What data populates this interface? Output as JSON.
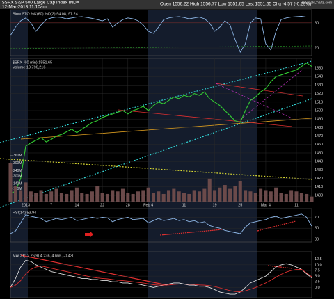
{
  "header": {
    "symbol": "$SPX S&P 500 Large Cap Index INDX",
    "date": "12-Mar-2013 11:10am",
    "quote": "Open 1556.22 High 1556.77 Low 1551.65 Last 1551.65 Chg -4.57 (-0.29%)",
    "credit": "© StockCharts.com"
  },
  "chart_data": [
    {
      "type": "line",
      "title": "Slow STO %K(60) %D(3) 94.08, 97.24",
      "xlim": [
        0,
        59
      ],
      "ylim": [
        1.7,
        111.7
      ],
      "yticks": [
        80,
        20
      ],
      "series": [
        {
          "color": "#8fb8e8",
          "values": [
            50,
            70,
            85,
            92,
            80,
            60,
            75,
            88,
            92,
            94,
            93,
            90,
            92,
            94,
            95,
            93,
            91,
            88,
            85,
            90,
            70,
            80,
            88,
            92,
            90,
            85,
            75,
            60,
            55,
            70,
            88,
            92,
            94,
            95,
            93,
            90,
            92,
            94,
            90,
            80,
            60,
            70,
            85,
            75,
            40,
            10,
            30,
            80,
            92,
            90,
            30,
            15,
            60,
            88,
            92,
            94,
            95,
            96,
            94,
            94
          ]
        }
      ]
    },
    {
      "type": "line",
      "title": "$SPX (60 min) 1551.65",
      "xlim": [
        0,
        59
      ],
      "ylim": [
        1392.6,
        1561.5
      ],
      "yticks": [
        1400,
        1410,
        1420,
        1430,
        1440,
        1450,
        1460,
        1470,
        1480,
        1490,
        1500,
        1510,
        1520,
        1530,
        1540,
        1550
      ],
      "xticks": [
        {
          "value": 3,
          "label": "2013"
        },
        {
          "value": 8,
          "label": "7"
        },
        {
          "value": 13,
          "label": "14"
        },
        {
          "value": 18,
          "label": "22"
        },
        {
          "value": 23,
          "label": "28"
        },
        {
          "value": 27,
          "label": "Feb 4"
        },
        {
          "value": 34,
          "label": "11"
        },
        {
          "value": 40,
          "label": "19"
        },
        {
          "value": 45,
          "label": "25"
        },
        {
          "value": 50,
          "label": "Mar 4"
        },
        {
          "value": 56,
          "label": "11"
        }
      ],
      "series": [
        {
          "color": "#33cc33",
          "values": [
            1402,
            1405,
            1420,
            1458,
            1462,
            1465,
            1468,
            1463,
            1466,
            1470,
            1472,
            1475,
            1478,
            1474,
            1478,
            1482,
            1486,
            1488,
            1492,
            1494,
            1496,
            1498,
            1500,
            1496,
            1500,
            1502,
            1505,
            1500,
            1506,
            1510,
            1508,
            1512,
            1516,
            1514,
            1518,
            1516,
            1520,
            1518,
            1522,
            1514,
            1510,
            1506,
            1500,
            1494,
            1488,
            1486,
            1500,
            1512,
            1516,
            1522,
            1526,
            1534,
            1540,
            1542,
            1544,
            1546,
            1548,
            1552,
            1556,
            1552
          ]
        }
      ]
    },
    {
      "type": "bar",
      "title": "Volume 10,796,216",
      "xlim": [
        0,
        59
      ],
      "ylim": [
        0,
        380000000
      ],
      "color": "#6b4a4a",
      "yticks": [
        {
          "value": 100000000,
          "label": "100M"
        },
        {
          "value": 140000000,
          "label": "140M"
        },
        {
          "value": 200000000,
          "label": "200M"
        },
        {
          "value": 240000000,
          "label": "240M"
        },
        {
          "value": 300000000,
          "label": "300M"
        },
        {
          "value": 360000000,
          "label": "360M"
        }
      ],
      "values": [
        300000000,
        120000000,
        90000000,
        150000000,
        80000000,
        70000000,
        90000000,
        60000000,
        80000000,
        100000000,
        70000000,
        60000000,
        90000000,
        110000000,
        70000000,
        60000000,
        80000000,
        120000000,
        70000000,
        60000000,
        90000000,
        80000000,
        100000000,
        70000000,
        60000000,
        80000000,
        90000000,
        110000000,
        70000000,
        80000000,
        60000000,
        90000000,
        100000000,
        80000000,
        70000000,
        60000000,
        90000000,
        80000000,
        100000000,
        180000000,
        90000000,
        110000000,
        130000000,
        100000000,
        120000000,
        160000000,
        90000000,
        80000000,
        70000000,
        100000000,
        90000000,
        80000000,
        110000000,
        70000000,
        60000000,
        90000000,
        80000000,
        70000000,
        60000000,
        40000000
      ]
    },
    {
      "type": "line",
      "title": "RSI(14) 53.94",
      "xlim": [
        0,
        59
      ],
      "ylim": [
        24.7,
        86
      ],
      "yticks": [
        70,
        50,
        30
      ],
      "series": [
        {
          "color": "#8fb8e8",
          "values": [
            40,
            45,
            60,
            75,
            72,
            70,
            68,
            62,
            65,
            68,
            66,
            68,
            70,
            64,
            66,
            68,
            70,
            68,
            70,
            69,
            62,
            66,
            68,
            70,
            66,
            67,
            68,
            60,
            64,
            68,
            64,
            66,
            68,
            64,
            66,
            62,
            64,
            60,
            62,
            55,
            52,
            50,
            46,
            44,
            42,
            40,
            52,
            60,
            62,
            64,
            66,
            70,
            72,
            68,
            70,
            72,
            74,
            76,
            70,
            54
          ]
        }
      ]
    },
    {
      "type": "line",
      "title": "MACD(12,26,9) 4.236, 4.666, -0.430",
      "xlim": [
        0,
        59
      ],
      "ylim": [
        -4.5,
        15.8
      ],
      "yticks": [
        {
          "value": 12.5,
          "label": "12.5"
        },
        {
          "value": 10,
          "label": "10.0"
        },
        {
          "value": 7.5,
          "label": "7.5"
        },
        {
          "value": 5,
          "label": "5.0"
        },
        {
          "value": 2.5,
          "label": "2.5"
        },
        {
          "value": 0,
          "label": "0.0"
        }
      ],
      "series": [
        {
          "color": "#e0e0e0",
          "values": [
            0,
            4,
            9,
            12,
            11.5,
            10,
            9,
            8,
            7,
            6.5,
            6,
            5.5,
            5,
            4.5,
            4,
            4,
            3.5,
            3.5,
            3,
            3,
            2.5,
            2.5,
            2,
            2,
            1.5,
            1.5,
            1,
            0.5,
            0,
            0.5,
            1,
            1.5,
            2,
            2,
            1.5,
            1,
            1,
            0.5,
            0.5,
            0,
            -1,
            -2,
            -2.5,
            -3,
            -3,
            -2,
            0,
            2,
            3,
            4,
            5,
            7,
            9,
            10,
            10.5,
            10,
            9,
            8,
            6,
            4.2
          ]
        },
        {
          "color": "#e03030",
          "values": [
            0,
            1,
            3,
            6,
            8,
            9,
            9.5,
            9,
            8.5,
            8,
            7.5,
            7,
            6.5,
            6,
            5.5,
            5,
            4.5,
            4.2,
            4,
            3.8,
            3.5,
            3.2,
            3,
            2.8,
            2.5,
            2.2,
            2,
            1.6,
            1.2,
            1,
            1,
            1.1,
            1.3,
            1.5,
            1.5,
            1.4,
            1.3,
            1.1,
            1,
            0.8,
            0.4,
            -0.2,
            -0.8,
            -1.4,
            -1.8,
            -1.9,
            -1.5,
            -0.8,
            0,
            1,
            2,
            3.2,
            4.5,
            5.8,
            6.8,
            7.5,
            8,
            8,
            6.4,
            4.7
          ]
        }
      ]
    }
  ]
}
